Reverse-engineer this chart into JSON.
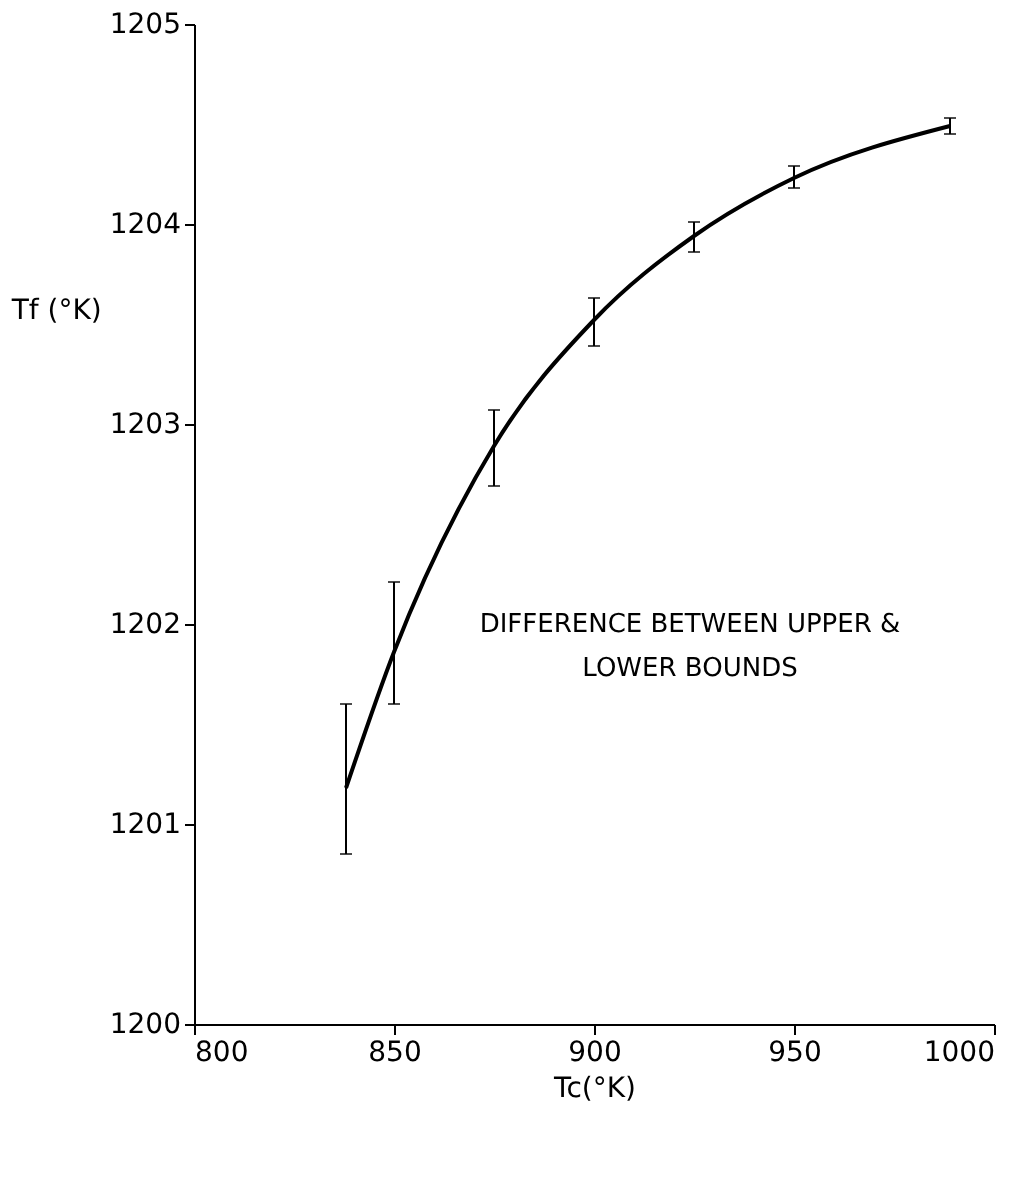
{
  "chart_data": {
    "type": "line",
    "xlabel": "Tc(°K)",
    "ylabel": "Tf (°K)",
    "x": [
      838,
      850,
      875,
      900,
      925,
      950,
      989
    ],
    "series": [
      {
        "color": "#000000",
        "values": [
          1201.18,
          1201.86,
          1202.89,
          1203.52,
          1203.94,
          1204.23,
          1204.49
        ],
        "errors": [
          [
            1200.85,
            1201.6
          ],
          [
            1201.6,
            1202.21
          ],
          [
            1202.69,
            1203.07
          ],
          [
            1203.39,
            1203.63
          ],
          [
            1203.86,
            1204.01
          ],
          [
            1204.18,
            1204.29
          ],
          [
            1204.45,
            1204.53
          ]
        ]
      }
    ],
    "annotations": [
      "DIFFERENCE BETWEEN UPPER &\nLOWER BOUNDS"
    ],
    "xlim": [
      800,
      1000
    ],
    "xticks": [
      800,
      850,
      900,
      950,
      1000
    ],
    "ylim": [
      1200,
      1205
    ],
    "yticks": [
      1200,
      1201,
      1202,
      1203,
      1204,
      1205
    ],
    "grid": false,
    "marker": "none",
    "line_style": "solid"
  }
}
